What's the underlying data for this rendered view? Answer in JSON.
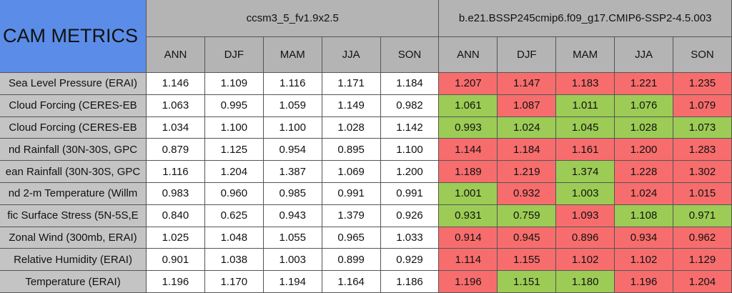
{
  "header": {
    "title": "CAM METRICS",
    "groups": [
      "ccsm3_5_fv1.9x2.5",
      "b.e21.BSSP245cmip6.f09_g17.CMIP6-SSP2-4.5.003"
    ],
    "seasons": [
      "ANN",
      "DJF",
      "MAM",
      "JJA",
      "SON"
    ]
  },
  "colors": {
    "title": "#5b8de8",
    "header": "#b4b4b4",
    "label": "#c4c4c4",
    "cell": "#ffffff",
    "red": "#f76d6d",
    "green": "#9ccc55"
  },
  "table": {
    "rows": [
      {
        "label": "Sea Level Pressure (ERAI)",
        "left": [
          "1.146",
          "1.109",
          "1.116",
          "1.171",
          "1.184"
        ],
        "right": [
          "1.207",
          "1.147",
          "1.183",
          "1.221",
          "1.235"
        ],
        "right_colors": [
          "red",
          "red",
          "red",
          "red",
          "red"
        ]
      },
      {
        "label": "Cloud Forcing (CERES-EB",
        "left": [
          "1.063",
          "0.995",
          "1.059",
          "1.149",
          "0.982"
        ],
        "right": [
          "1.061",
          "1.087",
          "1.011",
          "1.076",
          "1.079"
        ],
        "right_colors": [
          "green",
          "red",
          "green",
          "green",
          "red"
        ]
      },
      {
        "label": "Cloud Forcing (CERES-EB",
        "left": [
          "1.034",
          "1.100",
          "1.100",
          "1.028",
          "1.142"
        ],
        "right": [
          "0.993",
          "1.024",
          "1.045",
          "1.028",
          "1.073"
        ],
        "right_colors": [
          "green",
          "green",
          "green",
          "green",
          "green"
        ]
      },
      {
        "label": "nd Rainfall (30N-30S, GPC",
        "left": [
          "0.879",
          "1.125",
          "0.954",
          "0.895",
          "1.100"
        ],
        "right": [
          "1.144",
          "1.184",
          "1.161",
          "1.200",
          "1.283"
        ],
        "right_colors": [
          "red",
          "red",
          "red",
          "red",
          "red"
        ]
      },
      {
        "label": "ean Rainfall (30N-30S, GPC",
        "left": [
          "1.116",
          "1.204",
          "1.387",
          "1.069",
          "1.200"
        ],
        "right": [
          "1.189",
          "1.219",
          "1.374",
          "1.228",
          "1.302"
        ],
        "right_colors": [
          "red",
          "red",
          "green",
          "red",
          "red"
        ]
      },
      {
        "label": "nd 2-m Temperature (Willm",
        "left": [
          "0.983",
          "0.960",
          "0.985",
          "0.991",
          "0.991"
        ],
        "right": [
          "1.001",
          "0.932",
          "1.003",
          "1.024",
          "1.015"
        ],
        "right_colors": [
          "green",
          "red",
          "green",
          "red",
          "red"
        ]
      },
      {
        "label": "fic Surface Stress (5N-5S,E",
        "left": [
          "0.840",
          "0.625",
          "0.943",
          "1.379",
          "0.926"
        ],
        "right": [
          "0.931",
          "0.759",
          "1.093",
          "1.108",
          "0.971"
        ],
        "right_colors": [
          "green",
          "green",
          "red",
          "green",
          "green"
        ]
      },
      {
        "label": "Zonal Wind (300mb, ERAI)",
        "left": [
          "1.025",
          "1.048",
          "1.055",
          "0.965",
          "1.033"
        ],
        "right": [
          "0.914",
          "0.945",
          "0.896",
          "0.934",
          "0.962"
        ],
        "right_colors": [
          "red",
          "red",
          "red",
          "red",
          "red"
        ]
      },
      {
        "label": "Relative Humidity (ERAI)",
        "left": [
          "0.901",
          "1.038",
          "1.003",
          "0.899",
          "0.929"
        ],
        "right": [
          "1.114",
          "1.155",
          "1.102",
          "1.102",
          "1.129"
        ],
        "right_colors": [
          "red",
          "red",
          "red",
          "red",
          "red"
        ]
      },
      {
        "label": "Temperature (ERAI)",
        "left": [
          "1.196",
          "1.170",
          "1.194",
          "1.164",
          "1.186"
        ],
        "right": [
          "1.196",
          "1.151",
          "1.180",
          "1.196",
          "1.204"
        ],
        "right_colors": [
          "red",
          "green",
          "green",
          "red",
          "red"
        ]
      }
    ]
  }
}
